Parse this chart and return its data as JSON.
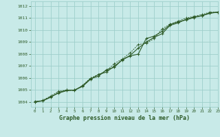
{
  "title": "Graphe pression niveau de la mer (hPa)",
  "bg_color": "#c8eae8",
  "grid_color": "#9ecfcb",
  "line_color": "#2d5a27",
  "xlim": [
    -0.5,
    23
  ],
  "ylim": [
    1003.6,
    1012.4
  ],
  "yticks": [
    1004,
    1005,
    1006,
    1007,
    1008,
    1009,
    1010,
    1011,
    1012
  ],
  "xticks": [
    0,
    1,
    2,
    3,
    4,
    5,
    6,
    7,
    8,
    9,
    10,
    11,
    12,
    13,
    14,
    15,
    16,
    17,
    18,
    19,
    20,
    21,
    22,
    23
  ],
  "series1_x": [
    0,
    1,
    2,
    3,
    4,
    5,
    6,
    7,
    8,
    9,
    10,
    11,
    12,
    13,
    14,
    15,
    16,
    17,
    18,
    19,
    20,
    21,
    22,
    23
  ],
  "series1_y": [
    1004.0,
    1004.1,
    1004.4,
    1004.8,
    1005.0,
    1005.0,
    1005.3,
    1005.9,
    1006.3,
    1006.5,
    1007.0,
    1007.5,
    1007.9,
    1008.5,
    1009.0,
    1009.4,
    1009.7,
    1010.4,
    1010.6,
    1010.9,
    1011.1,
    1011.2,
    1011.4,
    1011.5
  ],
  "series2_x": [
    0,
    1,
    2,
    3,
    4,
    5,
    6,
    7,
    8,
    9,
    10,
    11,
    12,
    13,
    14,
    15,
    16,
    17,
    18,
    19,
    20,
    21,
    22,
    23
  ],
  "series2_y": [
    1004.0,
    1004.15,
    1004.5,
    1004.9,
    1005.0,
    1004.95,
    1005.4,
    1006.0,
    1006.3,
    1006.6,
    1007.2,
    1007.6,
    1008.1,
    1008.8,
    1008.9,
    1009.3,
    1010.1,
    1010.5,
    1010.75,
    1011.0,
    1011.15,
    1011.3,
    1011.5,
    1011.5
  ],
  "series3_x": [
    0,
    1,
    2,
    3,
    4,
    5,
    6,
    7,
    8,
    9,
    10,
    11,
    12,
    13,
    14,
    15,
    16,
    17,
    18,
    19,
    20,
    21,
    22,
    23
  ],
  "series3_y": [
    1004.05,
    1004.1,
    1004.45,
    1004.75,
    1004.95,
    1005.0,
    1005.35,
    1005.95,
    1006.15,
    1006.7,
    1006.9,
    1007.55,
    1007.85,
    1008.0,
    1009.3,
    1009.5,
    1009.9,
    1010.45,
    1010.7,
    1010.85,
    1011.05,
    1011.2,
    1011.45,
    1011.5
  ]
}
